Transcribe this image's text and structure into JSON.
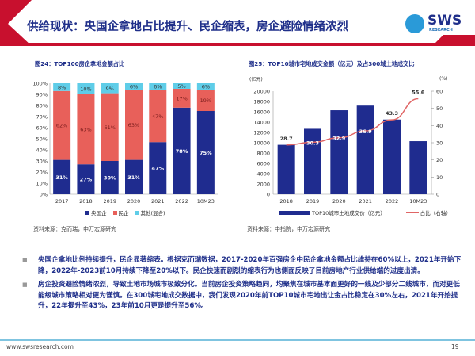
{
  "header": {
    "title": "供给现状：央国企拿地占比提升、民企缩表，房企避险情绪浓烈",
    "logo_text": "SWS",
    "logo_sub": "RESEARCH"
  },
  "colors": {
    "navy": "#1f2c8f",
    "red": "#e8605a",
    "cyan": "#5fcde8",
    "line": "#e06666",
    "brand": "#1f2f8a"
  },
  "chart_data": [
    {
      "type": "bar",
      "stacked": true,
      "title": "图24：TOP100房企拿地金额占比",
      "categories": [
        "2017",
        "2018",
        "2019",
        "2020",
        "2021",
        "2022",
        "10M23"
      ],
      "series": [
        {
          "name": "央国企",
          "values": [
            31,
            27,
            30,
            31,
            47,
            78,
            75
          ],
          "labels": [
            "31%",
            "27%",
            "30%",
            "31%",
            "47%",
            "78%",
            "75%"
          ]
        },
        {
          "name": "民企",
          "values": [
            62,
            63,
            61,
            63,
            47,
            17,
            19
          ],
          "labels": [
            "62%",
            "63%",
            "61%",
            "63%",
            "47%",
            "17%",
            "19%"
          ]
        },
        {
          "name": "其他(混合)",
          "values": [
            8,
            10,
            9,
            6,
            6,
            5,
            6
          ],
          "labels": [
            "8%",
            "10%",
            "9%",
            "6%",
            "6%",
            "5%",
            "6%"
          ]
        }
      ],
      "yticks": [
        "0%",
        "10%",
        "20%",
        "30%",
        "40%",
        "50%",
        "60%",
        "70%",
        "80%",
        "90%",
        "100%"
      ],
      "ylim": [
        0,
        100
      ],
      "legend": "bottom",
      "source": "资料来源：克而瑞，申万宏源研究"
    },
    {
      "type": "bar+line",
      "title": "图25：TOP10城市宅地成交金额（亿元）及占300城土地成交比",
      "categories": [
        "2018",
        "2019",
        "2020",
        "2021",
        "2022",
        "10M23"
      ],
      "bars": {
        "name": "TOP10城市土地成交价（亿元）",
        "values": [
          9600,
          12700,
          16300,
          17200,
          14500,
          10300
        ]
      },
      "line": {
        "name": "占比（右轴）",
        "values": [
          28.7,
          30.3,
          32.9,
          36.9,
          43.3,
          55.6
        ],
        "labels": [
          "28.7",
          "30.3",
          "32.9",
          "36.9",
          "43.3",
          "55.6"
        ]
      },
      "ylabel_left": "(亿元)",
      "ylabel_right": "(%)",
      "yticks_left": [
        "0",
        "2000",
        "4000",
        "6000",
        "8000",
        "10000",
        "12000",
        "14000",
        "16000",
        "18000",
        "20000"
      ],
      "yticks_right": [
        "0",
        "10",
        "20",
        "30",
        "40",
        "50",
        "60"
      ],
      "ylim_left": [
        0,
        20000
      ],
      "ylim_right": [
        0,
        60
      ],
      "legend": "bottom",
      "source": "资料来源：中指院，申万宏源研究"
    }
  ],
  "bullets": [
    "央国企拿地比例持续提升，民企显著缩表。根据克而瑞数据，2017-2020年百强房企中民企拿地金额占比维持在60%以上，2021年开始下降，2022年-2023前10月持续下降至20%以下。民企快速而剧烈的缩表行为也侧面反映了目前房地产行业供给端的过度出清。",
    "房企投资避险情绪浓烈，导致土地市场城市极致分化。当前房企投资策略趋同，均聚焦在城市基本面更好的一线及少部分二线城市，而对更低能级城市策略相对更为谨慎。在300城宅地成交数据中，我们发现2020年前TOP10城市宅地出让金占比稳定在30%左右，2021年开始提升，22年提升至43%，23年前10月更是提升至56%。"
  ],
  "footer": {
    "url": "www.swsresearch.com",
    "page": "19"
  }
}
